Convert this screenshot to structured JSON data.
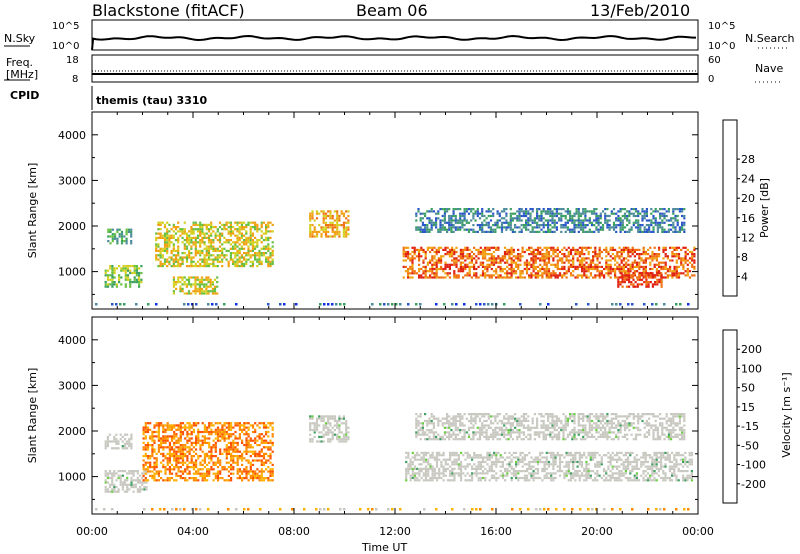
{
  "header": {
    "station": "Blackstone (fitACF)",
    "beam": "Beam 06",
    "date": "13/Feb/2010"
  },
  "strips": {
    "nsky_label": "N.Sky",
    "nsky_ticks": [
      "10^5",
      "10^0"
    ],
    "nsearch_label": "N.Search",
    "nsearch_ticks": [
      "10^5",
      "10^0"
    ],
    "freq_label_top": "Freq.",
    "freq_label_bottom": "[MHz]",
    "freq_ticks": [
      "18",
      "8"
    ],
    "nave_label": "Nave",
    "nave_ticks": [
      "60",
      "0"
    ],
    "cpid_label": "CPID",
    "cpid_value": "themis (tau) 3310"
  },
  "colors": {
    "power": [
      "#1030e0",
      "#2a55c8",
      "#4a8a9a",
      "#3aa060",
      "#66c040",
      "#d4d020",
      "#f0a010",
      "#f07010",
      "#e02010"
    ],
    "velocity": [
      "#ff0000",
      "#ff5000",
      "#ff8a00",
      "#ffb000",
      "#c8c8c0",
      "#6ad040",
      "#40a060",
      "#2a60c0",
      "#1028d0"
    ],
    "ground_scatter": "#c8c8c0"
  },
  "chart_data": [
    {
      "type": "heatmap",
      "name_panel": "power",
      "ylabel": "Slant Range [km]",
      "xlabel": "Time UT",
      "xticks": [
        "00:00",
        "04:00",
        "08:00",
        "12:00",
        "16:00",
        "20:00",
        "00:00"
      ],
      "xlim_hours": [
        0,
        24
      ],
      "ylim_km": [
        180,
        4500
      ],
      "yticks": [
        1000,
        2000,
        3000,
        4000
      ],
      "colorbar": {
        "label": "Power [dB]",
        "ticks": [
          4,
          8,
          12,
          16,
          20,
          24,
          28
        ],
        "range": [
          0,
          32
        ]
      },
      "regions": [
        {
          "t": [
            0.6,
            1.6
          ],
          "r": [
            1600,
            1950
          ],
          "level": 3
        },
        {
          "t": [
            0.5,
            2.0
          ],
          "r": [
            650,
            1150
          ],
          "level": 4
        },
        {
          "t": [
            2.5,
            7.2
          ],
          "r": [
            1100,
            2100
          ],
          "level": 5
        },
        {
          "t": [
            3.2,
            5.0
          ],
          "r": [
            500,
            900
          ],
          "level": 5
        },
        {
          "t": [
            8.6,
            10.2
          ],
          "r": [
            1750,
            2350
          ],
          "level": 6
        },
        {
          "t": [
            12.3,
            23.9
          ],
          "r": [
            850,
            1550
          ],
          "level": 7
        },
        {
          "t": [
            20.8,
            22.6
          ],
          "r": [
            650,
            1000
          ],
          "level": 8
        },
        {
          "t": [
            12.8,
            23.5
          ],
          "r": [
            1850,
            2400
          ],
          "level": 2
        }
      ]
    },
    {
      "type": "heatmap",
      "name_panel": "velocity",
      "ylabel": "Slant Range [km]",
      "xlabel": "Time UT",
      "xticks": [
        "00:00",
        "04:00",
        "08:00",
        "12:00",
        "16:00",
        "20:00",
        "00:00"
      ],
      "xlim_hours": [
        0,
        24
      ],
      "ylim_km": [
        180,
        4500
      ],
      "yticks": [
        1000,
        2000,
        3000,
        4000
      ],
      "colorbar": {
        "label": "Velocity [m s⁻¹]",
        "ticks": [
          "200",
          "100",
          "50",
          "15",
          "-15",
          "-50",
          "-100",
          "-200"
        ],
        "range": [
          -250,
          250
        ]
      },
      "regions": [
        {
          "t": [
            0.5,
            1.6
          ],
          "r": [
            1600,
            1950
          ],
          "kind": "ground"
        },
        {
          "t": [
            0.5,
            2.2
          ],
          "r": [
            650,
            1150
          ],
          "kind": "ground"
        },
        {
          "t": [
            2.0,
            7.2
          ],
          "r": [
            900,
            2200
          ],
          "kind": "flow"
        },
        {
          "t": [
            8.6,
            10.2
          ],
          "r": [
            1750,
            2350
          ],
          "kind": "ground"
        },
        {
          "t": [
            12.4,
            23.8
          ],
          "r": [
            900,
            1550
          ],
          "kind": "ground"
        },
        {
          "t": [
            12.8,
            23.5
          ],
          "r": [
            1800,
            2400
          ],
          "kind": "ground"
        }
      ]
    }
  ]
}
